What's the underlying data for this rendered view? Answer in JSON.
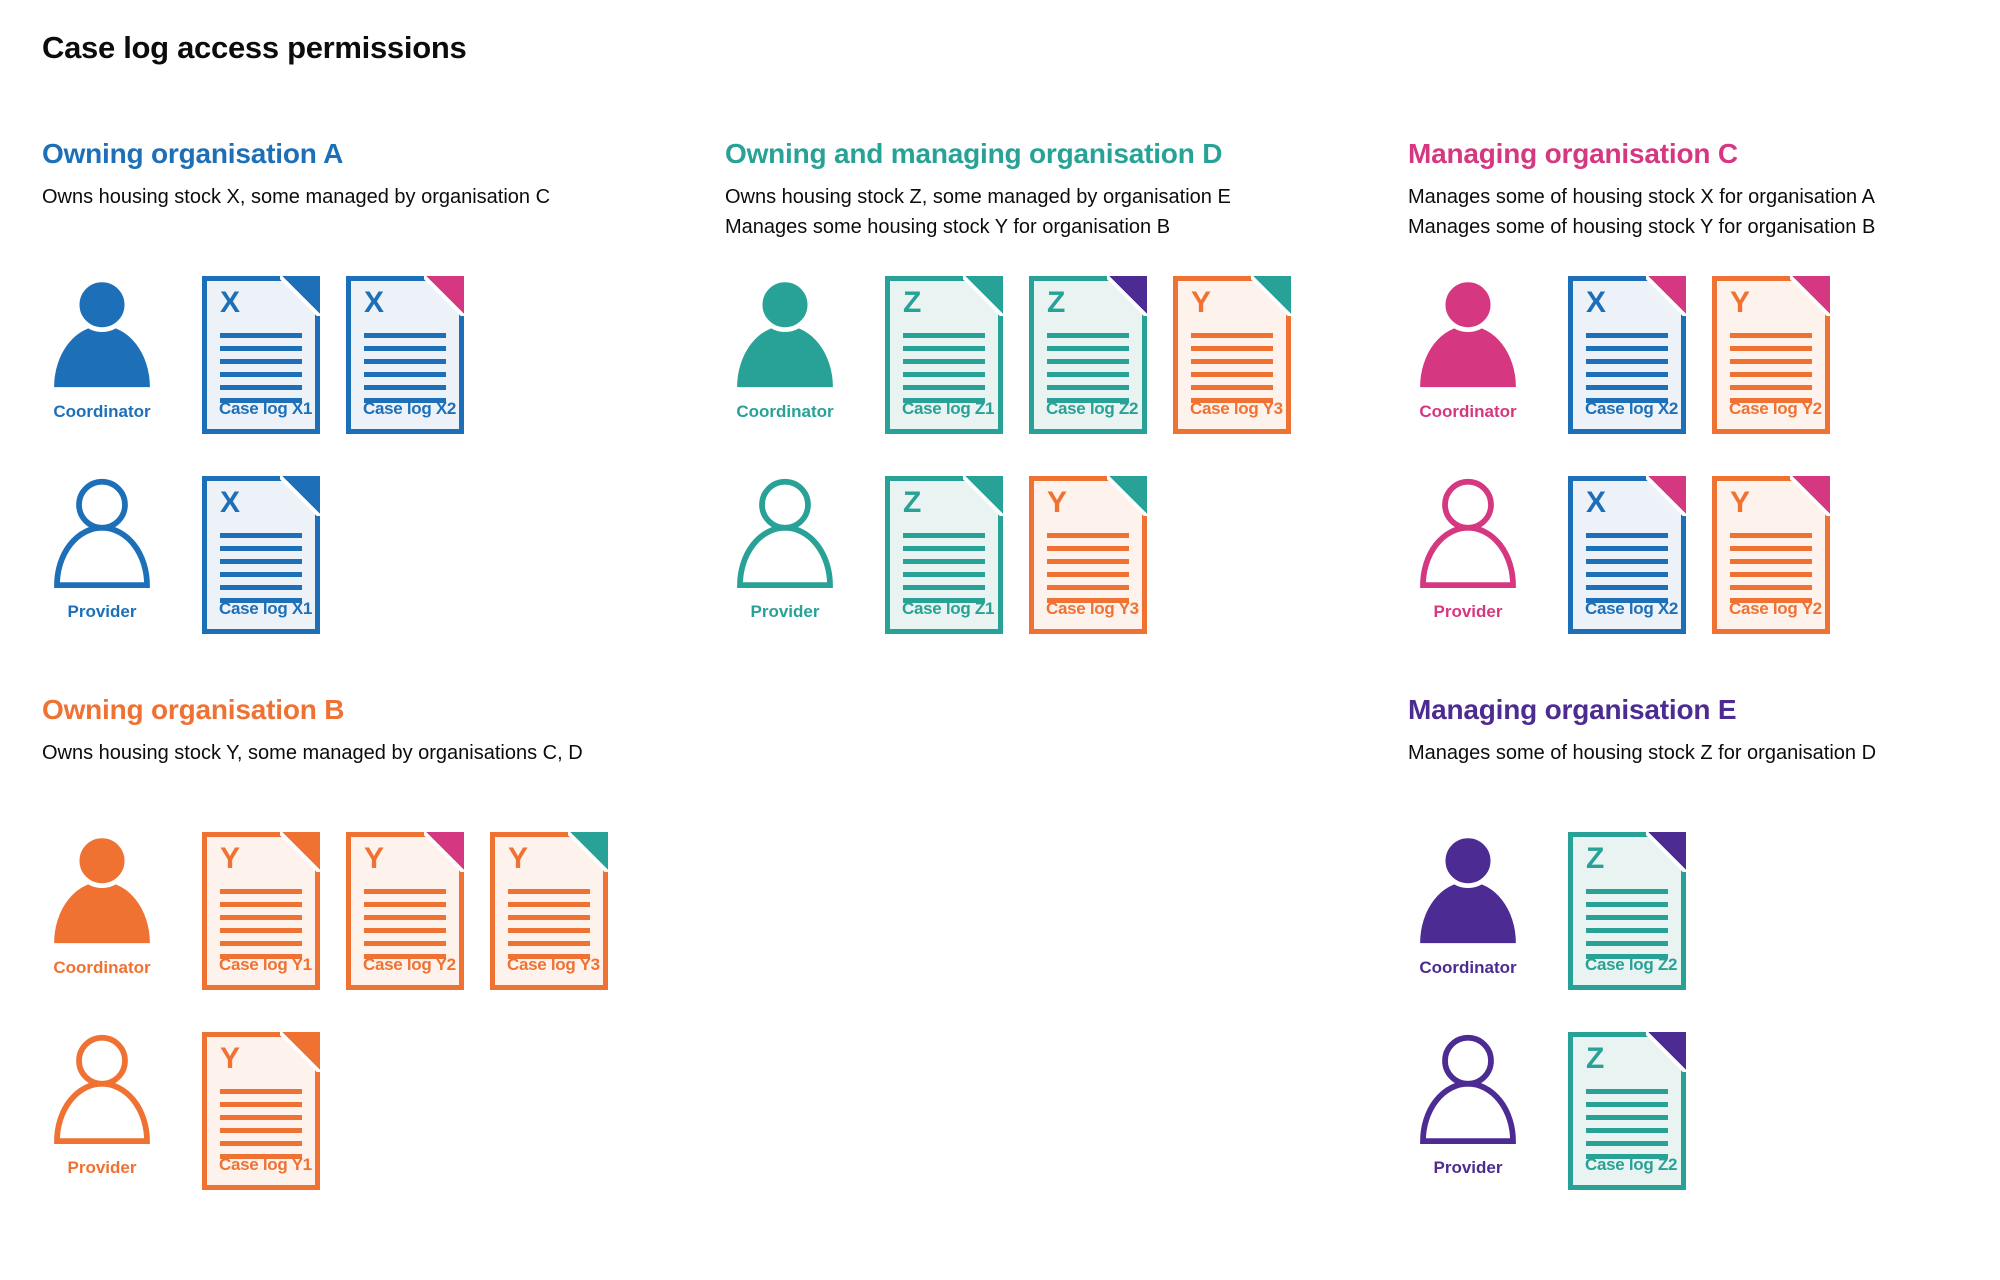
{
  "page_title": "Case log access permissions",
  "colors": {
    "blue": "#1d70b8",
    "teal": "#28a197",
    "pink": "#d53880",
    "orange": "#ef7233",
    "purple": "#4c2c92",
    "text": "#0b0c0c",
    "blue_fill": "#edf2f9",
    "teal_fill": "#e9f4f2",
    "orange_fill": "#fdf3ec"
  },
  "roles": {
    "coordinator_label": "Coordinator",
    "provider_label": "Provider"
  },
  "sections": [
    {
      "id": "a",
      "title": "Owning organisation A",
      "color": "blue",
      "description": [
        "Owns housing stock X, some managed by organisation C"
      ],
      "rows": [
        {
          "role": "coordinator",
          "docs": [
            {
              "letter": "X",
              "label": "Case log X1",
              "doc": "blue",
              "fold": "blue"
            },
            {
              "letter": "X",
              "label": "Case log X2",
              "doc": "blue",
              "fold": "pink"
            }
          ]
        },
        {
          "role": "provider",
          "docs": [
            {
              "letter": "X",
              "label": "Case log X1",
              "doc": "blue",
              "fold": "blue"
            }
          ]
        }
      ]
    },
    {
      "id": "d",
      "title": "Owning and managing organisation D",
      "color": "teal",
      "description": [
        "Owns housing stock Z, some managed by organisation E",
        "Manages some housing stock Y for organisation B"
      ],
      "rows": [
        {
          "role": "coordinator",
          "docs": [
            {
              "letter": "Z",
              "label": "Case log Z1",
              "doc": "teal",
              "fold": "teal"
            },
            {
              "letter": "Z",
              "label": "Case log Z2",
              "doc": "teal",
              "fold": "purple"
            },
            {
              "letter": "Y",
              "label": "Case log Y3",
              "doc": "orange",
              "fold": "teal"
            }
          ]
        },
        {
          "role": "provider",
          "docs": [
            {
              "letter": "Z",
              "label": "Case log Z1",
              "doc": "teal",
              "fold": "teal"
            },
            {
              "letter": "Y",
              "label": "Case log Y3",
              "doc": "orange",
              "fold": "teal"
            }
          ]
        }
      ]
    },
    {
      "id": "c",
      "title": "Managing organisation C",
      "color": "pink",
      "description": [
        "Manages some of housing stock X for organisation A",
        "Manages some of housing stock Y for organisation B"
      ],
      "rows": [
        {
          "role": "coordinator",
          "docs": [
            {
              "letter": "X",
              "label": "Case log X2",
              "doc": "blue",
              "fold": "pink"
            },
            {
              "letter": "Y",
              "label": "Case log Y2",
              "doc": "orange",
              "fold": "pink"
            }
          ]
        },
        {
          "role": "provider",
          "docs": [
            {
              "letter": "X",
              "label": "Case log X2",
              "doc": "blue",
              "fold": "pink"
            },
            {
              "letter": "Y",
              "label": "Case log Y2",
              "doc": "orange",
              "fold": "pink"
            }
          ]
        }
      ]
    },
    {
      "id": "b",
      "title": "Owning organisation B",
      "color": "orange",
      "description": [
        "Owns housing stock Y, some managed by organisations C, D"
      ],
      "rows": [
        {
          "role": "coordinator",
          "docs": [
            {
              "letter": "Y",
              "label": "Case log Y1",
              "doc": "orange",
              "fold": "orange"
            },
            {
              "letter": "Y",
              "label": "Case log Y2",
              "doc": "orange",
              "fold": "pink"
            },
            {
              "letter": "Y",
              "label": "Case log Y3",
              "doc": "orange",
              "fold": "teal"
            }
          ]
        },
        {
          "role": "provider",
          "docs": [
            {
              "letter": "Y",
              "label": "Case log Y1",
              "doc": "orange",
              "fold": "orange"
            }
          ]
        }
      ]
    },
    {
      "id": "e",
      "title": "Managing organisation E",
      "color": "purple",
      "description": [
        "Manages some of housing stock Z for organisation D"
      ],
      "rows": [
        {
          "role": "coordinator",
          "docs": [
            {
              "letter": "Z",
              "label": "Case log Z2",
              "doc": "teal",
              "fold": "purple"
            }
          ]
        },
        {
          "role": "provider",
          "docs": [
            {
              "letter": "Z",
              "label": "Case log Z2",
              "doc": "teal",
              "fold": "purple"
            }
          ]
        }
      ]
    }
  ]
}
